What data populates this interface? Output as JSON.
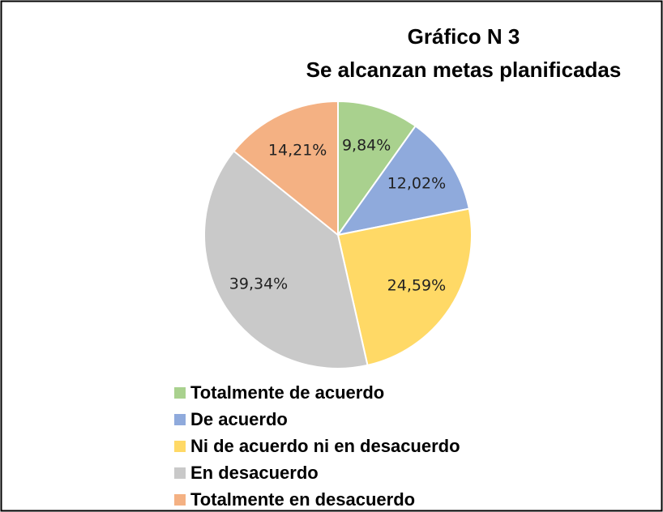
{
  "chart_data": {
    "type": "pie",
    "title": "Gráfico N 3",
    "subtitle": "Se alcanzan metas planificadas",
    "categories": [
      "Totalmente de acuerdo",
      "De acuerdo",
      "Ni de acuerdo ni en desacuerdo",
      "En desacuerdo",
      "Totalmente en desacuerdo"
    ],
    "values": [
      9.84,
      12.02,
      24.59,
      39.34,
      14.21
    ],
    "value_labels": [
      "9,84%",
      "12,02%",
      "24,59%",
      "39,34%",
      "14,21%"
    ],
    "colors": [
      "#a9d18e",
      "#8faadc",
      "#ffd966",
      "#c9c9c9",
      "#f4b183"
    ],
    "legend": "bottom"
  }
}
